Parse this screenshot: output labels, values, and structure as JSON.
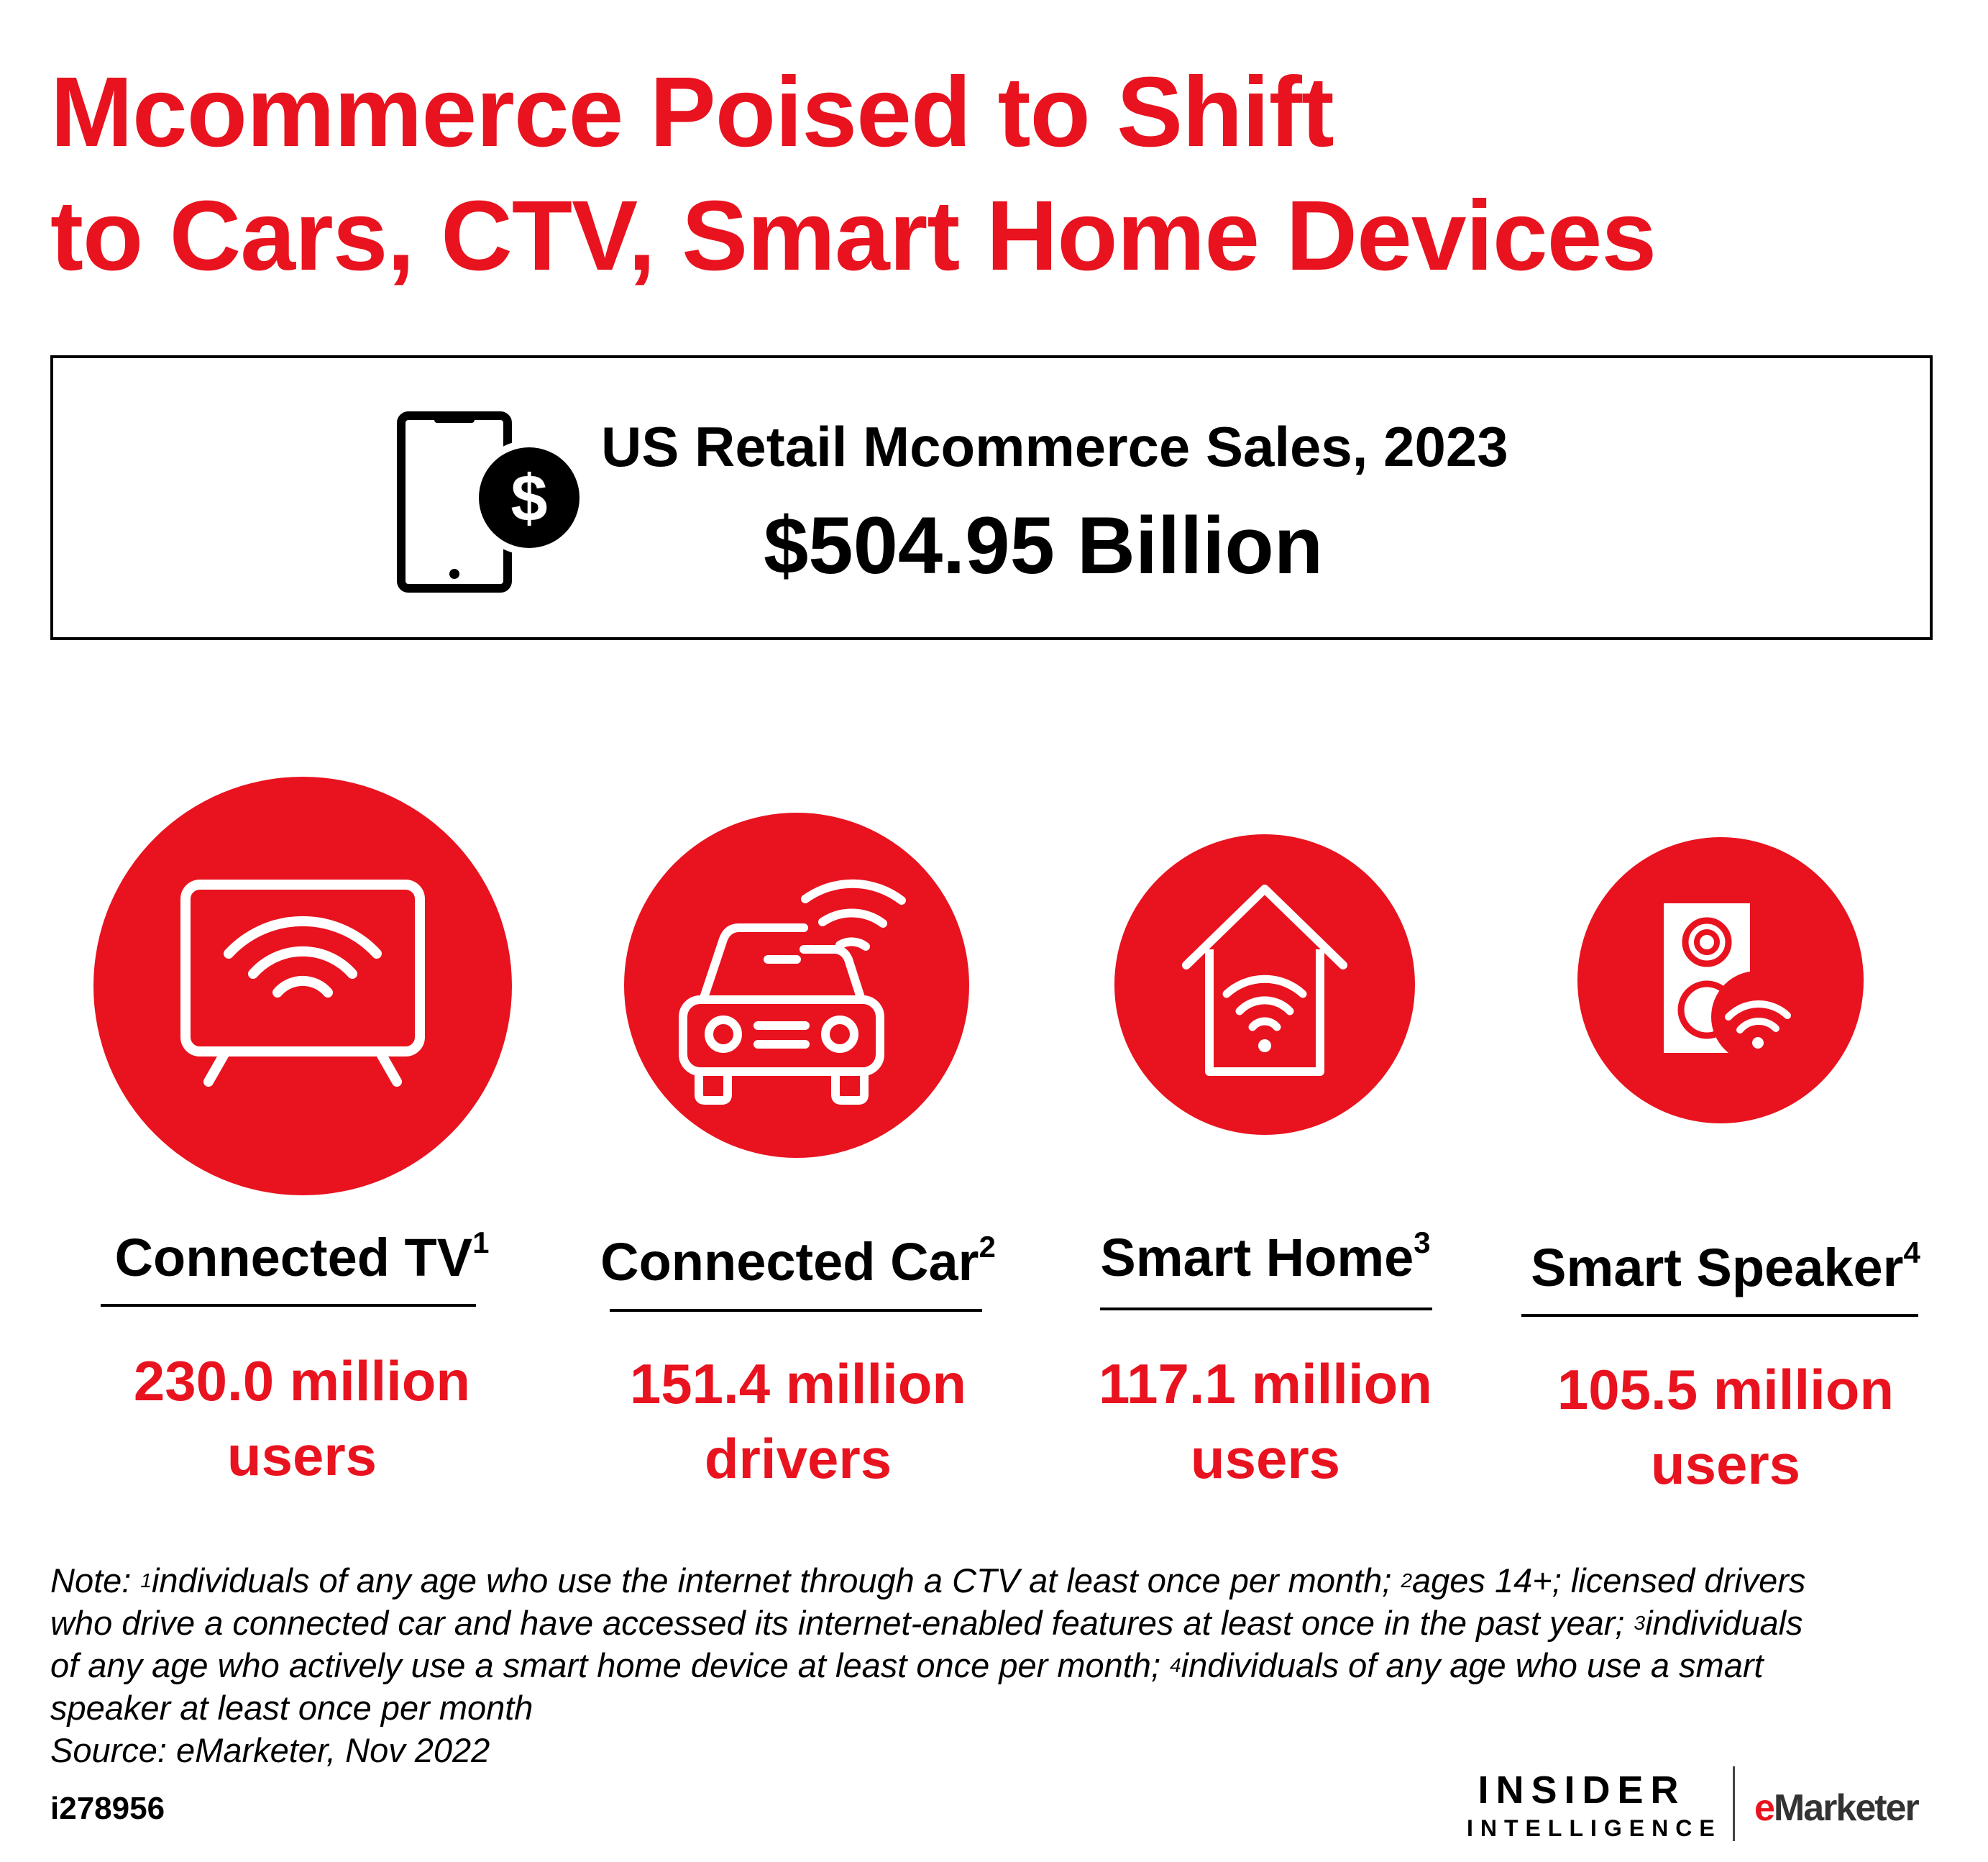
{
  "title": {
    "line1": "Mcommerce Poised to Shift",
    "line2": "to Cars, CTV, Smart Home Devices"
  },
  "sales": {
    "icon": "smartphone-dollar-icon",
    "label": "US Retail Mcommerce Sales, 2023",
    "value": "$504.95 Billion"
  },
  "categories": [
    {
      "icon": "connected-tv-icon",
      "label": "Connected TV",
      "sup": "1",
      "value_line1": "230.0 million",
      "value_line2": "users"
    },
    {
      "icon": "connected-car-icon",
      "label": "Connected Car",
      "sup": "2",
      "value_line1": "151.4 million",
      "value_line2": "drivers"
    },
    {
      "icon": "smart-home-icon",
      "label": "Smart Home",
      "sup": "3",
      "value_line1": "117.1 million",
      "value_line2": "users"
    },
    {
      "icon": "smart-speaker-icon",
      "label": "Smart Speaker",
      "sup": "4",
      "value_line1": "105.5 million",
      "value_line2": "users"
    }
  ],
  "note": {
    "l1_a": "Note: ",
    "l1_sup1": "1",
    "l1_b": "individuals of any age who use the internet through a CTV at least once per month; ",
    "l1_sup2": "2",
    "l1_c": "ages 14+; licensed drivers",
    "l2_a": "who drive a connected car and have accessed its internet-enabled features at least once in the past year; ",
    "l2_sup3": "3",
    "l2_b": "individuals",
    "l3_a": "of any age who actively use a smart home device at least once per month; ",
    "l3_sup4": "4",
    "l3_b": "individuals of any age who use a smart",
    "l4": "speaker at least once per month",
    "source": "Source: eMarketer, Nov 2022"
  },
  "chart_id": "i278956",
  "branding": {
    "insider_line1": "INSIDER",
    "insider_line2": "INTELLIGENCE",
    "emarketer_e": "e",
    "emarketer_rest": "Marketer"
  },
  "colors": {
    "accent": "#e8131f",
    "text": "#000000",
    "background": "#ffffff"
  }
}
